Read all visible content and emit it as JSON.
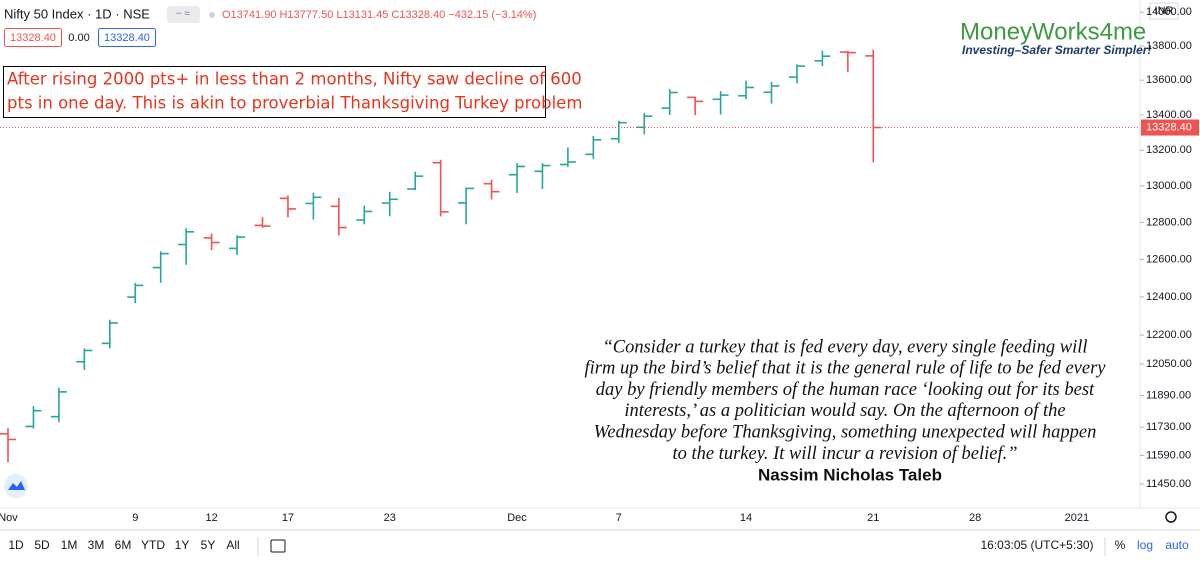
{
  "header": {
    "symbol": "Nifty 50 Index · 1D · NSE",
    "ohlc_text": "O13741.90 H13777.50 L13131.45 C13328.40 −432.15 (−3.14%)",
    "bid": "13328.40",
    "spread": "0.00",
    "ask": "13328.40"
  },
  "logo": {
    "name": "MoneyWorks4me",
    "tagline": "Investing–Safer Smarter Simpler!"
  },
  "annotation": [
    "After rising 2000 pts+ in less than 2 months, Nifty saw decline of 600",
    "pts in one day. This is akin to proverbial Thanksgiving Turkey problem"
  ],
  "quote": {
    "lines": [
      "“Consider a turkey that is fed every day, every single feeding will",
      "firm up the bird’s belief that it is the general rule of life to be fed every",
      "day by friendly members of the human race ‘looking out for its best",
      "interests,’ as a politician would say. On the afternoon of the",
      "Wednesday before Thanksgiving, something unexpected will happen",
      "to the turkey. It will incur a revision of belief.”"
    ],
    "author": "Nassim Nicholas Taleb"
  },
  "currency": "INR",
  "toolbar": {
    "ranges": [
      "1D",
      "5D",
      "1M",
      "3M",
      "6M",
      "YTD",
      "1Y",
      "5Y",
      "All"
    ],
    "time": "16:03:05 (UTC+5:30)",
    "percent": "%",
    "log": "log",
    "auto": "auto"
  },
  "chart_data": {
    "type": "ohlc",
    "categories": [
      "Nov",
      null,
      null,
      null,
      null,
      "9",
      null,
      null,
      "12",
      null,
      null,
      "17",
      null,
      null,
      null,
      "23",
      null,
      null,
      null,
      null,
      "Dec",
      null,
      null,
      null,
      "7",
      null,
      null,
      null,
      null,
      "14",
      null,
      null,
      null,
      null,
      "21",
      null,
      null,
      null,
      "28",
      null,
      null,
      null,
      "2021",
      null,
      null
    ],
    "open": [
      11697,
      11734,
      11783,
      12062,
      12157,
      12399,
      12556,
      12680,
      12716,
      12659,
      12784,
      12932,
      12904,
      12888,
      12813,
      12906,
      12984,
      13130,
      12907,
      13013,
      13063,
      13082,
      13120,
      13177,
      13265,
      13330,
      13439,
      13501,
      13490,
      13510,
      13530,
      13618,
      13713,
      13764,
      13741.9,
      null,
      null,
      null,
      null,
      null,
      null,
      null,
      null,
      null,
      null
    ],
    "high": [
      11725,
      11836,
      11929,
      12131,
      12280,
      12474,
      12643,
      12769,
      12740,
      12730,
      12829,
      12948,
      12963,
      12934,
      12892,
      12968,
      13080,
      13146,
      12991,
      13035,
      13128,
      13128,
      13216,
      13280,
      13366,
      13411,
      13548,
      13504,
      13537,
      13597,
      13590,
      13692,
      13773,
      13771,
      13777.5,
      null,
      null,
      null,
      null,
      null,
      null,
      null,
      null,
      null,
      null
    ],
    "low": [
      11557,
      11723,
      11756,
      12020,
      12131,
      12367,
      12475,
      12571,
      12650,
      12624,
      12771,
      12828,
      12815,
      12730,
      12790,
      12834,
      12978,
      12833,
      12790,
      12926,
      12962,
      12983,
      13107,
      13152,
      13241,
      13290,
      13400,
      13399,
      13402,
      13491,
      13465,
      13582,
      13682,
      13647,
      13131.45,
      null,
      null,
      null,
      null,
      null,
      null,
      null,
      null,
      null,
      null
    ],
    "close": [
      11669,
      11813,
      11908,
      12120,
      12263,
      12461,
      12631,
      12749,
      12691,
      12720,
      12780,
      12874,
      12938,
      12772,
      12860,
      12927,
      13055,
      12858,
      12987,
      12969,
      13109,
      13114,
      13134,
      13259,
      13356,
      13393,
      13529,
      13478,
      13514,
      13558,
      13567,
      13682,
      13740,
      13761,
      13328.4,
      null,
      null,
      null,
      null,
      null,
      null,
      null,
      null,
      null,
      null
    ],
    "up_color": "#26a69a",
    "down_color": "#ef5350",
    "log": true,
    "ylim": [
      11333,
      14073
    ],
    "yticks": [
      {
        "value": 11450,
        "label": "11450.00"
      },
      {
        "value": 11590,
        "label": "11590.00"
      },
      {
        "value": 11730,
        "label": "11730.00"
      },
      {
        "value": 11890,
        "label": "11890.00"
      },
      {
        "value": 12050,
        "label": "12050.00"
      },
      {
        "value": 12200,
        "label": "12200.00"
      },
      {
        "value": 12400,
        "label": "12400.00"
      },
      {
        "value": 12600,
        "label": "12600.00"
      },
      {
        "value": 12800,
        "label": "12800.00"
      },
      {
        "value": 13000,
        "label": "13000.00"
      },
      {
        "value": 13200,
        "label": "13200.00"
      },
      {
        "value": 13400,
        "label": "13400.00"
      },
      {
        "value": 13600,
        "label": "13600.00"
      },
      {
        "value": 13800,
        "label": "13800.00"
      },
      {
        "value": 14000,
        "label": "14000.00"
      }
    ],
    "last_price_label": "13328.40",
    "grid": false
  }
}
